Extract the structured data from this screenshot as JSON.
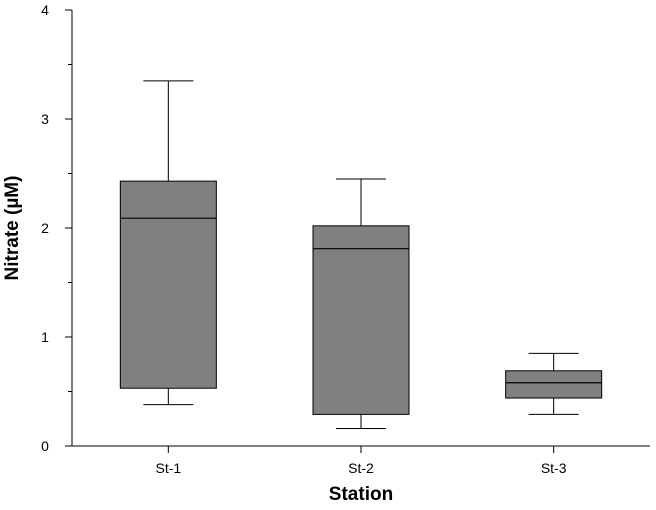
{
  "chart_data": {
    "type": "box",
    "title": "",
    "xlabel": "Station",
    "ylabel": "Nitrate (µM)",
    "ylim": [
      0,
      4
    ],
    "yticks_major": [
      0,
      1,
      2,
      3,
      4
    ],
    "yticks_minor": [
      0.5,
      1.5,
      2.5,
      3.5
    ],
    "categories": [
      "St-1",
      "St-2",
      "St-3"
    ],
    "boxes": [
      {
        "category": "St-1",
        "whisker_low": 0.38,
        "q1": 0.53,
        "median": 2.09,
        "q3": 2.43,
        "whisker_high": 3.35
      },
      {
        "category": "St-2",
        "whisker_low": 0.16,
        "q1": 0.29,
        "median": 1.81,
        "q3": 2.02,
        "whisker_high": 2.45
      },
      {
        "category": "St-3",
        "whisker_low": 0.29,
        "q1": 0.44,
        "median": 0.58,
        "q3": 0.69,
        "whisker_high": 0.85
      }
    ],
    "box_fill": "#808080",
    "grid": false,
    "legend": "none"
  }
}
